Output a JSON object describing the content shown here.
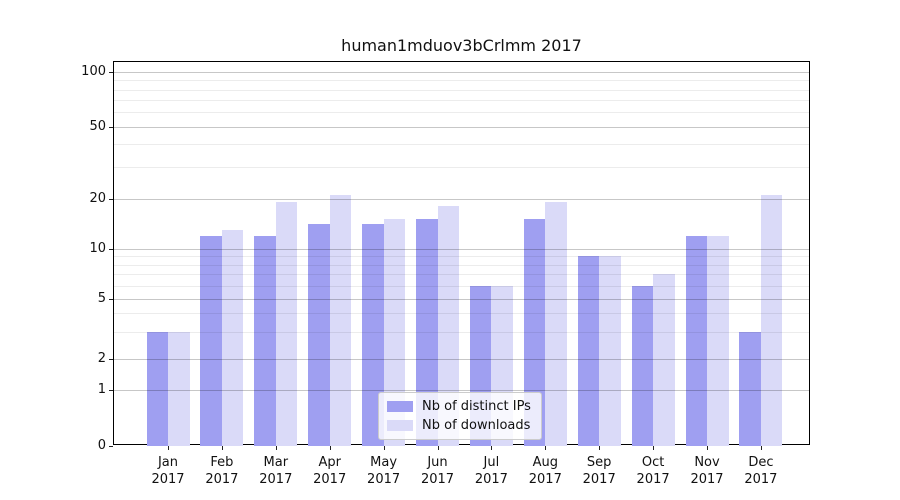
{
  "chart_data": {
    "type": "bar",
    "title": "human1mduov3bCrlmm 2017",
    "categories": [
      "Jan",
      "Feb",
      "Mar",
      "Apr",
      "May",
      "Jun",
      "Jul",
      "Aug",
      "Sep",
      "Oct",
      "Nov",
      "Dec"
    ],
    "category_year": "2017",
    "series": [
      {
        "name": "Nb of distinct IPs",
        "color": "#9f9ff1",
        "values": [
          3,
          12,
          12,
          14,
          14,
          15,
          6,
          15,
          9,
          6,
          12,
          3
        ]
      },
      {
        "name": "Nb of downloads",
        "color": "#dadaf8",
        "values": [
          3,
          13,
          19,
          21,
          15,
          18,
          6,
          19,
          9,
          7,
          12,
          21
        ]
      }
    ],
    "y_axis": {
      "scale": "symlog",
      "major_ticks": [
        0,
        1,
        2,
        5,
        10,
        20,
        50,
        100
      ],
      "minor_ticks": [
        3,
        4,
        6,
        7,
        8,
        9,
        30,
        40,
        60,
        70,
        80,
        90
      ],
      "range": [
        0,
        113
      ]
    },
    "legend": {
      "position": "bottom-center"
    },
    "grid": true,
    "background": "#ffffff"
  }
}
